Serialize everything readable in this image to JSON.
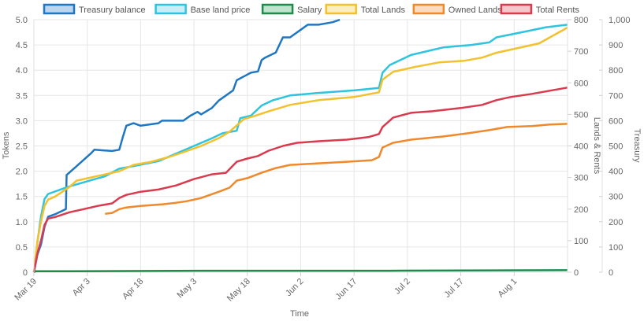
{
  "chart_data": {
    "type": "line",
    "xlabel": "Time",
    "ylabel_left": "Tokens",
    "ylabel_right1": "Lands & Rents",
    "ylabel_right2": "Treasury",
    "x_tick_labels": [
      "Mar 19",
      "Apr 3",
      "Apr 18",
      "May 3",
      "May 18",
      "Jun 2",
      "Jun 17",
      "Jul 2",
      "Jul 17",
      "Aug 1"
    ],
    "x_range_days": [
      0,
      150
    ],
    "y_left": {
      "min": 0,
      "max": 5,
      "ticks": [
        0,
        0.5,
        1,
        1.5,
        2,
        2.5,
        3,
        3.5,
        4,
        4.5,
        5
      ],
      "tick_labels": [
        "0",
        "0.5",
        "1.0",
        "1.5",
        "2.0",
        "2.5",
        "3.0",
        "3.5",
        "4.0",
        "4.5",
        "5.0"
      ]
    },
    "y_right1": {
      "min": 0,
      "max": 800,
      "ticks": [
        0,
        100,
        200,
        300,
        400,
        500,
        600,
        700,
        800
      ],
      "tick_labels": [
        "0",
        "100",
        "200",
        "300",
        "400",
        "500",
        "600",
        "700",
        "800"
      ]
    },
    "y_right2": {
      "min": 0,
      "max": 1000,
      "ticks": [
        0,
        100,
        200,
        300,
        400,
        500,
        600,
        700,
        800,
        900,
        1000
      ],
      "tick_labels": [
        "0",
        "100",
        "200",
        "300",
        "400",
        "500",
        "600",
        "700",
        "800",
        "900",
        "1,000"
      ]
    },
    "grid": true,
    "legend_position": "top",
    "series": [
      {
        "name": "Treasury balance",
        "axis": "y_right2",
        "color": "#1f77c4",
        "fill": "#bcd6f0",
        "points": [
          [
            0,
            0
          ],
          [
            1,
            70
          ],
          [
            2,
            110
          ],
          [
            3,
            180
          ],
          [
            4,
            220
          ],
          [
            6,
            230
          ],
          [
            9,
            250
          ],
          [
            9.2,
            385
          ],
          [
            12,
            420
          ],
          [
            16,
            470
          ],
          [
            17,
            485
          ],
          [
            22,
            480
          ],
          [
            24,
            485
          ],
          [
            25,
            535
          ],
          [
            26,
            580
          ],
          [
            28,
            590
          ],
          [
            30,
            580
          ],
          [
            35,
            590
          ],
          [
            36,
            600
          ],
          [
            39,
            600
          ],
          [
            42,
            600
          ],
          [
            44,
            620
          ],
          [
            46,
            635
          ],
          [
            47,
            625
          ],
          [
            50,
            650
          ],
          [
            52,
            680
          ],
          [
            54,
            700
          ],
          [
            56,
            720
          ],
          [
            57,
            760
          ],
          [
            59,
            775
          ],
          [
            61,
            790
          ],
          [
            63,
            795
          ],
          [
            64,
            840
          ],
          [
            65,
            850
          ],
          [
            68,
            870
          ],
          [
            70,
            930
          ],
          [
            72,
            930
          ],
          [
            75,
            960
          ],
          [
            77,
            980
          ],
          [
            80,
            980
          ],
          [
            82,
            985
          ],
          [
            84,
            990
          ],
          [
            86,
            1000
          ]
        ]
      },
      {
        "name": "Base land price",
        "axis": "y_left",
        "color": "#2ec4e0",
        "fill": "#c9eef7",
        "points": [
          [
            0,
            0
          ],
          [
            1,
            0.6
          ],
          [
            2,
            1.1
          ],
          [
            3,
            1.45
          ],
          [
            4,
            1.55
          ],
          [
            8,
            1.65
          ],
          [
            10,
            1.7
          ],
          [
            15,
            1.8
          ],
          [
            20,
            1.9
          ],
          [
            24,
            2.05
          ],
          [
            28,
            2.1
          ],
          [
            35,
            2.2
          ],
          [
            40,
            2.35
          ],
          [
            45,
            2.5
          ],
          [
            50,
            2.65
          ],
          [
            53,
            2.75
          ],
          [
            57,
            2.8
          ],
          [
            58,
            3.05
          ],
          [
            61,
            3.1
          ],
          [
            64,
            3.3
          ],
          [
            67,
            3.4
          ],
          [
            72,
            3.5
          ],
          [
            80,
            3.55
          ],
          [
            90,
            3.6
          ],
          [
            97,
            3.65
          ],
          [
            98,
            3.95
          ],
          [
            100,
            4.1
          ],
          [
            106,
            4.3
          ],
          [
            115,
            4.45
          ],
          [
            123,
            4.5
          ],
          [
            128,
            4.55
          ],
          [
            130,
            4.65
          ],
          [
            137,
            4.75
          ],
          [
            144,
            4.85
          ],
          [
            150,
            4.9
          ]
        ]
      },
      {
        "name": "Salary",
        "axis": "y_left",
        "color": "#1e8a4c",
        "fill": "#bfe3cc",
        "points": [
          [
            0,
            0
          ],
          [
            0.5,
            0.02
          ],
          [
            10,
            0.02
          ],
          [
            50,
            0.03
          ],
          [
            100,
            0.03
          ],
          [
            150,
            0.04
          ]
        ]
      },
      {
        "name": "Total Lands",
        "axis": "y_right1",
        "color": "#f2c12e",
        "fill": "#faeec0",
        "points": [
          [
            0,
            0
          ],
          [
            1,
            100
          ],
          [
            2,
            160
          ],
          [
            3,
            210
          ],
          [
            4,
            230
          ],
          [
            6,
            240
          ],
          [
            10,
            270
          ],
          [
            12,
            290
          ],
          [
            16,
            300
          ],
          [
            20,
            310
          ],
          [
            24,
            320
          ],
          [
            28,
            340
          ],
          [
            33,
            350
          ],
          [
            38,
            365
          ],
          [
            42,
            380
          ],
          [
            47,
            400
          ],
          [
            52,
            425
          ],
          [
            55,
            445
          ],
          [
            57,
            465
          ],
          [
            59,
            485
          ],
          [
            62,
            495
          ],
          [
            66,
            510
          ],
          [
            72,
            530
          ],
          [
            80,
            545
          ],
          [
            90,
            555
          ],
          [
            97,
            570
          ],
          [
            98,
            610
          ],
          [
            101,
            635
          ],
          [
            107,
            650
          ],
          [
            114,
            665
          ],
          [
            121,
            670
          ],
          [
            126,
            680
          ],
          [
            130,
            695
          ],
          [
            136,
            710
          ],
          [
            142,
            725
          ],
          [
            150,
            775
          ]
        ]
      },
      {
        "name": "Owned Lands",
        "axis": "y_right1",
        "color": "#f0882c",
        "fill": "#fbdcc0",
        "points": [
          [
            20,
            185
          ],
          [
            22,
            188
          ],
          [
            24,
            200
          ],
          [
            26,
            205
          ],
          [
            30,
            210
          ],
          [
            36,
            215
          ],
          [
            40,
            220
          ],
          [
            43,
            225
          ],
          [
            47,
            235
          ],
          [
            52,
            255
          ],
          [
            55,
            268
          ],
          [
            57,
            290
          ],
          [
            60,
            298
          ],
          [
            64,
            315
          ],
          [
            68,
            330
          ],
          [
            72,
            340
          ],
          [
            80,
            345
          ],
          [
            88,
            350
          ],
          [
            95,
            355
          ],
          [
            97,
            365
          ],
          [
            98,
            395
          ],
          [
            101,
            410
          ],
          [
            106,
            420
          ],
          [
            115,
            430
          ],
          [
            122,
            440
          ],
          [
            128,
            450
          ],
          [
            133,
            460
          ],
          [
            140,
            463
          ],
          [
            145,
            468
          ],
          [
            150,
            470
          ]
        ]
      },
      {
        "name": "Total Rents",
        "axis": "y_right1",
        "color": "#d93a4e",
        "fill": "#f6c6cd",
        "points": [
          [
            0,
            0
          ],
          [
            1,
            60
          ],
          [
            2,
            100
          ],
          [
            3,
            150
          ],
          [
            4,
            170
          ],
          [
            6,
            175
          ],
          [
            10,
            190
          ],
          [
            14,
            200
          ],
          [
            18,
            210
          ],
          [
            22,
            218
          ],
          [
            24,
            235
          ],
          [
            26,
            245
          ],
          [
            30,
            255
          ],
          [
            35,
            262
          ],
          [
            40,
            275
          ],
          [
            45,
            295
          ],
          [
            50,
            310
          ],
          [
            54,
            315
          ],
          [
            57,
            350
          ],
          [
            60,
            360
          ],
          [
            63,
            368
          ],
          [
            66,
            385
          ],
          [
            70,
            400
          ],
          [
            74,
            410
          ],
          [
            80,
            415
          ],
          [
            88,
            420
          ],
          [
            94,
            428
          ],
          [
            97,
            438
          ],
          [
            98,
            460
          ],
          [
            101,
            490
          ],
          [
            106,
            505
          ],
          [
            112,
            510
          ],
          [
            120,
            520
          ],
          [
            126,
            530
          ],
          [
            130,
            545
          ],
          [
            134,
            555
          ],
          [
            140,
            565
          ],
          [
            150,
            585
          ]
        ]
      }
    ]
  }
}
